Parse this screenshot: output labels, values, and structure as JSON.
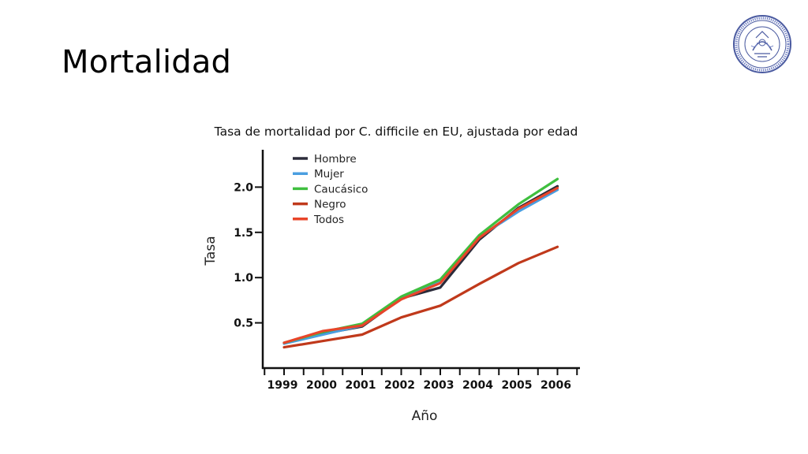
{
  "slide": {
    "title": "Mortalidad"
  },
  "chart_data": {
    "type": "line",
    "title": "Tasa de mortalidad por C. difficile en EU, ajustada por edad",
    "xlabel": "Año",
    "ylabel": "Tasa",
    "x": [
      "1999",
      "2000",
      "2001",
      "2002",
      "2003",
      "2004",
      "2005",
      "2006"
    ],
    "yticks": [
      "0.5",
      "1.0",
      "1.5",
      "2.0"
    ],
    "ylim": [
      0,
      2.2
    ],
    "grid": false,
    "legend_position": "top-left",
    "series": [
      {
        "name": "Hombre",
        "color": "#2b2b3a",
        "values": [
          0.28,
          0.38,
          0.46,
          0.77,
          0.89,
          1.42,
          1.77,
          2.01
        ]
      },
      {
        "name": "Mujer",
        "color": "#4a9ee0",
        "values": [
          0.27,
          0.37,
          0.47,
          0.78,
          0.97,
          1.45,
          1.73,
          1.97
        ]
      },
      {
        "name": "Caucásico",
        "color": "#3fbf3f",
        "values": [
          0.28,
          0.4,
          0.49,
          0.79,
          0.98,
          1.47,
          1.81,
          2.09
        ]
      },
      {
        "name": "Negro",
        "color": "#c0391b",
        "values": [
          0.23,
          0.3,
          0.37,
          0.56,
          0.69,
          0.93,
          1.16,
          1.34
        ]
      },
      {
        "name": "Todos",
        "color": "#e8452a",
        "values": [
          0.28,
          0.41,
          0.47,
          0.76,
          0.94,
          1.44,
          1.76,
          1.99
        ]
      }
    ]
  }
}
